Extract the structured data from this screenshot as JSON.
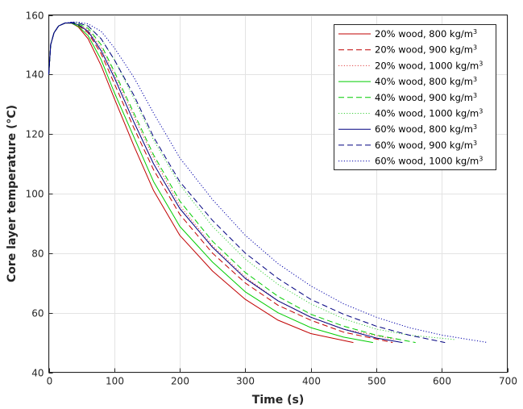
{
  "chart_data": {
    "type": "line",
    "title": "",
    "xlabel": "Time (s)",
    "ylabel": "Core layer temperature  (°C)",
    "xlim": [
      0,
      700
    ],
    "ylim": [
      40,
      160
    ],
    "xticks": [
      0,
      100,
      200,
      300,
      400,
      500,
      600,
      700
    ],
    "yticks": [
      40,
      60,
      80,
      100,
      120,
      140,
      160
    ],
    "grid": true,
    "legend_position": "top-right",
    "series": [
      {
        "name": "20% wood, 800 kg/m",
        "sup": "3",
        "color": "#c00000",
        "dash": "solid",
        "x": [
          0,
          3,
          8,
          15,
          25,
          35,
          45,
          60,
          80,
          100,
          130,
          160,
          200,
          250,
          300,
          350,
          400,
          465
        ],
        "y": [
          140,
          150,
          154,
          156.3,
          157.3,
          157.2,
          156,
          152,
          143,
          132,
          116,
          101,
          86,
          74,
          64.5,
          57.5,
          53,
          50
        ]
      },
      {
        "name": "20% wood, 900 kg/m",
        "sup": "3",
        "color": "#c00000",
        "dash": "dashed",
        "x": [
          0,
          3,
          8,
          15,
          25,
          35,
          45,
          60,
          80,
          100,
          130,
          160,
          200,
          250,
          300,
          350,
          400,
          450,
          525
        ],
        "y": [
          140,
          150,
          154,
          156.3,
          157.3,
          157.3,
          156.5,
          154,
          147,
          137,
          122,
          108,
          93,
          80,
          70,
          62.5,
          57.5,
          53.5,
          50
        ]
      },
      {
        "name": "20% wood, 1000 kg/m",
        "sup": "3",
        "color": "#e04040",
        "dash": "dotted",
        "x": [
          0,
          3,
          8,
          15,
          25,
          35,
          45,
          60,
          80,
          100,
          130,
          160,
          200,
          250,
          300,
          350,
          400,
          450,
          530
        ],
        "y": [
          140,
          150,
          154,
          156.3,
          157.3,
          157.3,
          156.8,
          155,
          149,
          140,
          126,
          112,
          96,
          82.5,
          72,
          64,
          58.5,
          54.5,
          51
        ]
      },
      {
        "name": "40% wood, 800 kg/m",
        "sup": "3",
        "color": "#00cc00",
        "dash": "solid",
        "x": [
          0,
          3,
          8,
          15,
          25,
          35,
          45,
          60,
          80,
          100,
          130,
          160,
          200,
          250,
          300,
          350,
          400,
          450,
          495
        ],
        "y": [
          140,
          150,
          154,
          156.3,
          157.3,
          157.2,
          156.2,
          153,
          145,
          134,
          119,
          104,
          89,
          77,
          67,
          60,
          55,
          51.8,
          50
        ]
      },
      {
        "name": "40% wood, 900 kg/m",
        "sup": "3",
        "color": "#00cc00",
        "dash": "dashed",
        "x": [
          0,
          3,
          8,
          15,
          25,
          35,
          45,
          60,
          80,
          100,
          130,
          160,
          200,
          250,
          300,
          350,
          400,
          450,
          500,
          560
        ],
        "y": [
          140,
          150,
          154,
          156.3,
          157.3,
          157.4,
          157,
          155.5,
          150,
          141,
          127,
          113,
          97.5,
          84,
          73.5,
          65.5,
          59.5,
          55.5,
          52.5,
          50
        ]
      },
      {
        "name": "40% wood, 1000 kg/m",
        "sup": "3",
        "color": "#40d040",
        "dash": "dotted",
        "x": [
          0,
          3,
          8,
          15,
          25,
          35,
          45,
          60,
          80,
          100,
          130,
          160,
          200,
          250,
          300,
          350,
          400,
          450,
          500,
          550,
          620
        ],
        "y": [
          140,
          150,
          154,
          156.3,
          157.3,
          157.5,
          157.3,
          156.3,
          152,
          145,
          132,
          118,
          103,
          89,
          78,
          69.5,
          63,
          58,
          54.5,
          52.5,
          51
        ]
      },
      {
        "name": "60% wood, 800 kg/m",
        "sup": "3",
        "color": "#000080",
        "dash": "solid",
        "x": [
          0,
          3,
          8,
          15,
          25,
          35,
          45,
          60,
          80,
          100,
          130,
          160,
          200,
          250,
          300,
          350,
          400,
          450,
          500,
          540
        ],
        "y": [
          140,
          150,
          154,
          156.3,
          157.3,
          157.3,
          156.7,
          154.5,
          148,
          139,
          124,
          110,
          95,
          82,
          71.5,
          64,
          58.5,
          54.5,
          51.5,
          50
        ]
      },
      {
        "name": "60% wood, 900 kg/m",
        "sup": "3",
        "color": "#000080",
        "dash": "dashed",
        "x": [
          0,
          3,
          8,
          15,
          25,
          35,
          45,
          60,
          80,
          100,
          130,
          160,
          200,
          250,
          300,
          350,
          400,
          450,
          500,
          550,
          605
        ],
        "y": [
          140,
          150,
          154,
          156.3,
          157.3,
          157.5,
          157.3,
          156.3,
          152,
          145,
          133,
          119,
          104,
          91,
          80,
          71.5,
          64.5,
          59.5,
          55.5,
          52.5,
          50
        ]
      },
      {
        "name": "60% wood, 1000 kg/m",
        "sup": "3",
        "color": "#0000aa",
        "dash": "dotted",
        "x": [
          0,
          3,
          8,
          15,
          25,
          35,
          45,
          60,
          80,
          100,
          130,
          160,
          200,
          250,
          300,
          350,
          400,
          450,
          500,
          550,
          600,
          670
        ],
        "y": [
          140,
          150,
          154,
          156.3,
          157.3,
          157.6,
          157.6,
          157,
          154.5,
          149,
          139,
          127,
          112,
          98,
          86,
          76.5,
          69,
          63,
          58.5,
          55,
          52.5,
          50
        ]
      }
    ]
  }
}
